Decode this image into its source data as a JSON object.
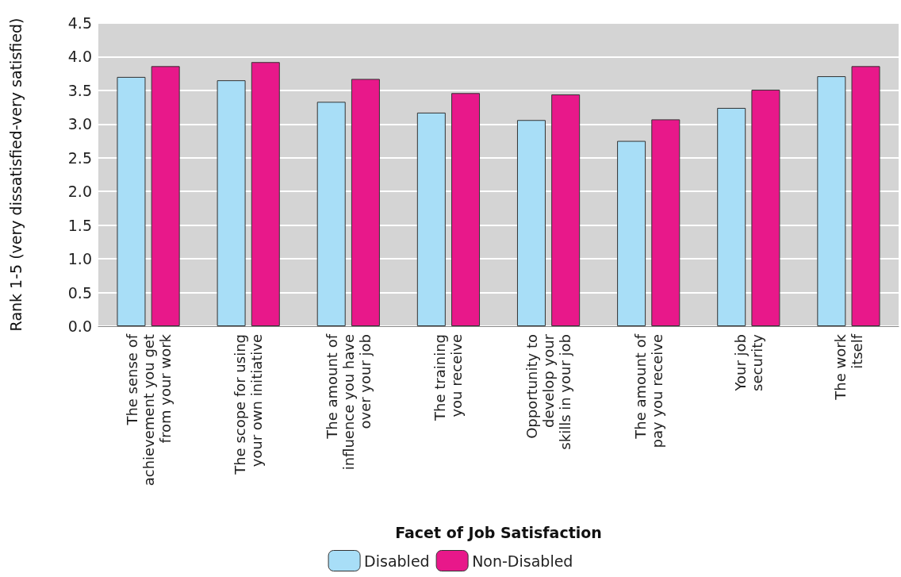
{
  "chart_data": {
    "type": "bar",
    "xlabel": "Facet of Job Satisfaction",
    "ylabel": "Rank 1-5 (very dissatisfied-very satisfied)",
    "categories": [
      "The sense of\nachievement you get\nfrom your work",
      "The scope for using\nyour own initiative",
      "The amount of\ninfluence you have\nover your job",
      "The training\nyou receive",
      "Opportunity to\ndevelop your\nskills in your job",
      "The amount of\npay you receive",
      "Your job\nsecurity",
      "The work\nitself"
    ],
    "series": [
      {
        "name": "Disabled",
        "color": "#a8def7",
        "values": [
          3.7,
          3.65,
          3.33,
          3.17,
          3.06,
          2.75,
          3.24,
          3.71
        ]
      },
      {
        "name": "Non-Disabled",
        "color": "#e8188a",
        "values": [
          3.86,
          3.92,
          3.67,
          3.46,
          3.44,
          3.07,
          3.51,
          3.86
        ]
      }
    ],
    "ylim": [
      0,
      4.5
    ],
    "yticks": [
      {
        "value": 0,
        "label": "0.0"
      },
      0.5,
      {
        "value": 1,
        "label": "1.0"
      },
      1.5,
      {
        "value": 2,
        "label": "2.0"
      },
      2.5,
      {
        "value": 3,
        "label": "3.0"
      },
      3.5,
      {
        "value": 4,
        "label": "4.0"
      },
      4.5
    ],
    "grid": "y",
    "legend": "bottom"
  }
}
